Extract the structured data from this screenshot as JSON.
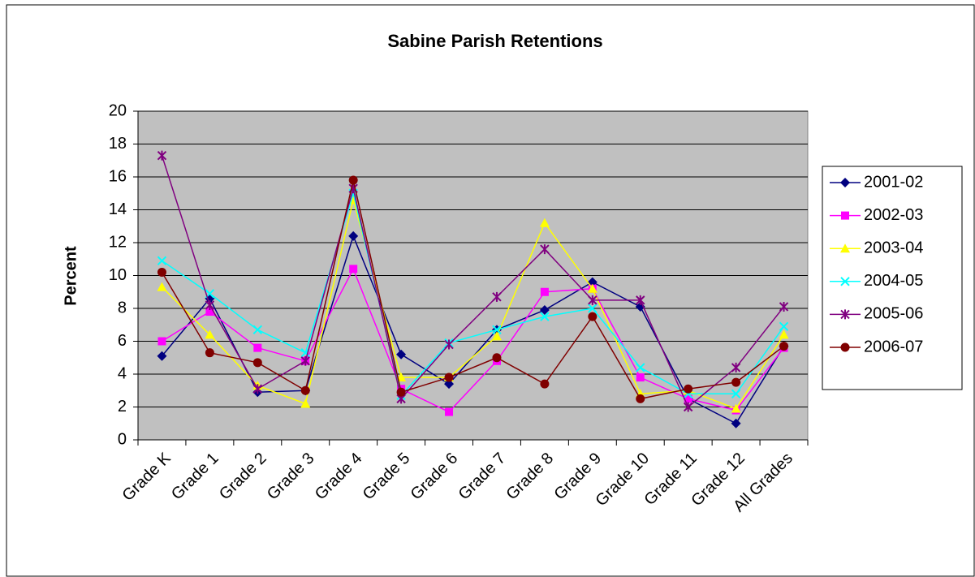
{
  "chart_data": {
    "type": "line",
    "title": "Sabine Parish Retentions",
    "y_label": "Percent",
    "categories": [
      "Grade K",
      "Grade 1",
      "Grade 2",
      "Grade 3",
      "Grade 4",
      "Grade 5",
      "Grade 6",
      "Grade 7",
      "Grade 8",
      "Grade 9",
      "Grade 10",
      "Grade 11",
      "Grade 12",
      "All Grades"
    ],
    "ylim": [
      0,
      20
    ],
    "yticks": [
      0,
      2,
      4,
      6,
      8,
      10,
      12,
      14,
      16,
      18,
      20
    ],
    "grid": true,
    "legend": "right",
    "series": [
      {
        "name": "2001-02",
        "color": "#000080",
        "marker": "diamond",
        "values": [
          5.1,
          8.6,
          2.9,
          3.0,
          12.4,
          5.2,
          3.4,
          6.7,
          7.9,
          9.6,
          8.1,
          2.5,
          1.0,
          5.7
        ]
      },
      {
        "name": "2002-03",
        "color": "#ff00ff",
        "marker": "square",
        "values": [
          6.0,
          7.8,
          5.6,
          4.8,
          10.4,
          3.1,
          1.7,
          4.8,
          9.0,
          9.2,
          3.8,
          2.5,
          1.8,
          5.6
        ]
      },
      {
        "name": "2003-04",
        "color": "#ffff00",
        "marker": "triangle",
        "values": [
          9.3,
          6.4,
          3.3,
          2.2,
          14.6,
          3.8,
          3.8,
          6.3,
          13.2,
          9.2,
          2.8,
          3.0,
          1.9,
          6.4
        ]
      },
      {
        "name": "2004-05",
        "color": "#00ffff",
        "marker": "x",
        "values": [
          10.9,
          8.9,
          6.7,
          5.3,
          15.0,
          2.7,
          5.9,
          6.7,
          7.5,
          8.0,
          4.4,
          2.8,
          2.8,
          6.9
        ]
      },
      {
        "name": "2005-06",
        "color": "#800080",
        "marker": "star",
        "values": [
          17.3,
          8.2,
          3.1,
          4.8,
          15.3,
          2.5,
          5.8,
          8.7,
          11.6,
          8.5,
          8.5,
          2.0,
          4.4,
          8.1
        ]
      },
      {
        "name": "2006-07",
        "color": "#800000",
        "marker": "circle",
        "values": [
          10.2,
          5.3,
          4.7,
          3.0,
          15.8,
          2.9,
          3.8,
          5.0,
          3.4,
          7.5,
          2.5,
          3.1,
          3.5,
          5.7
        ]
      }
    ]
  }
}
